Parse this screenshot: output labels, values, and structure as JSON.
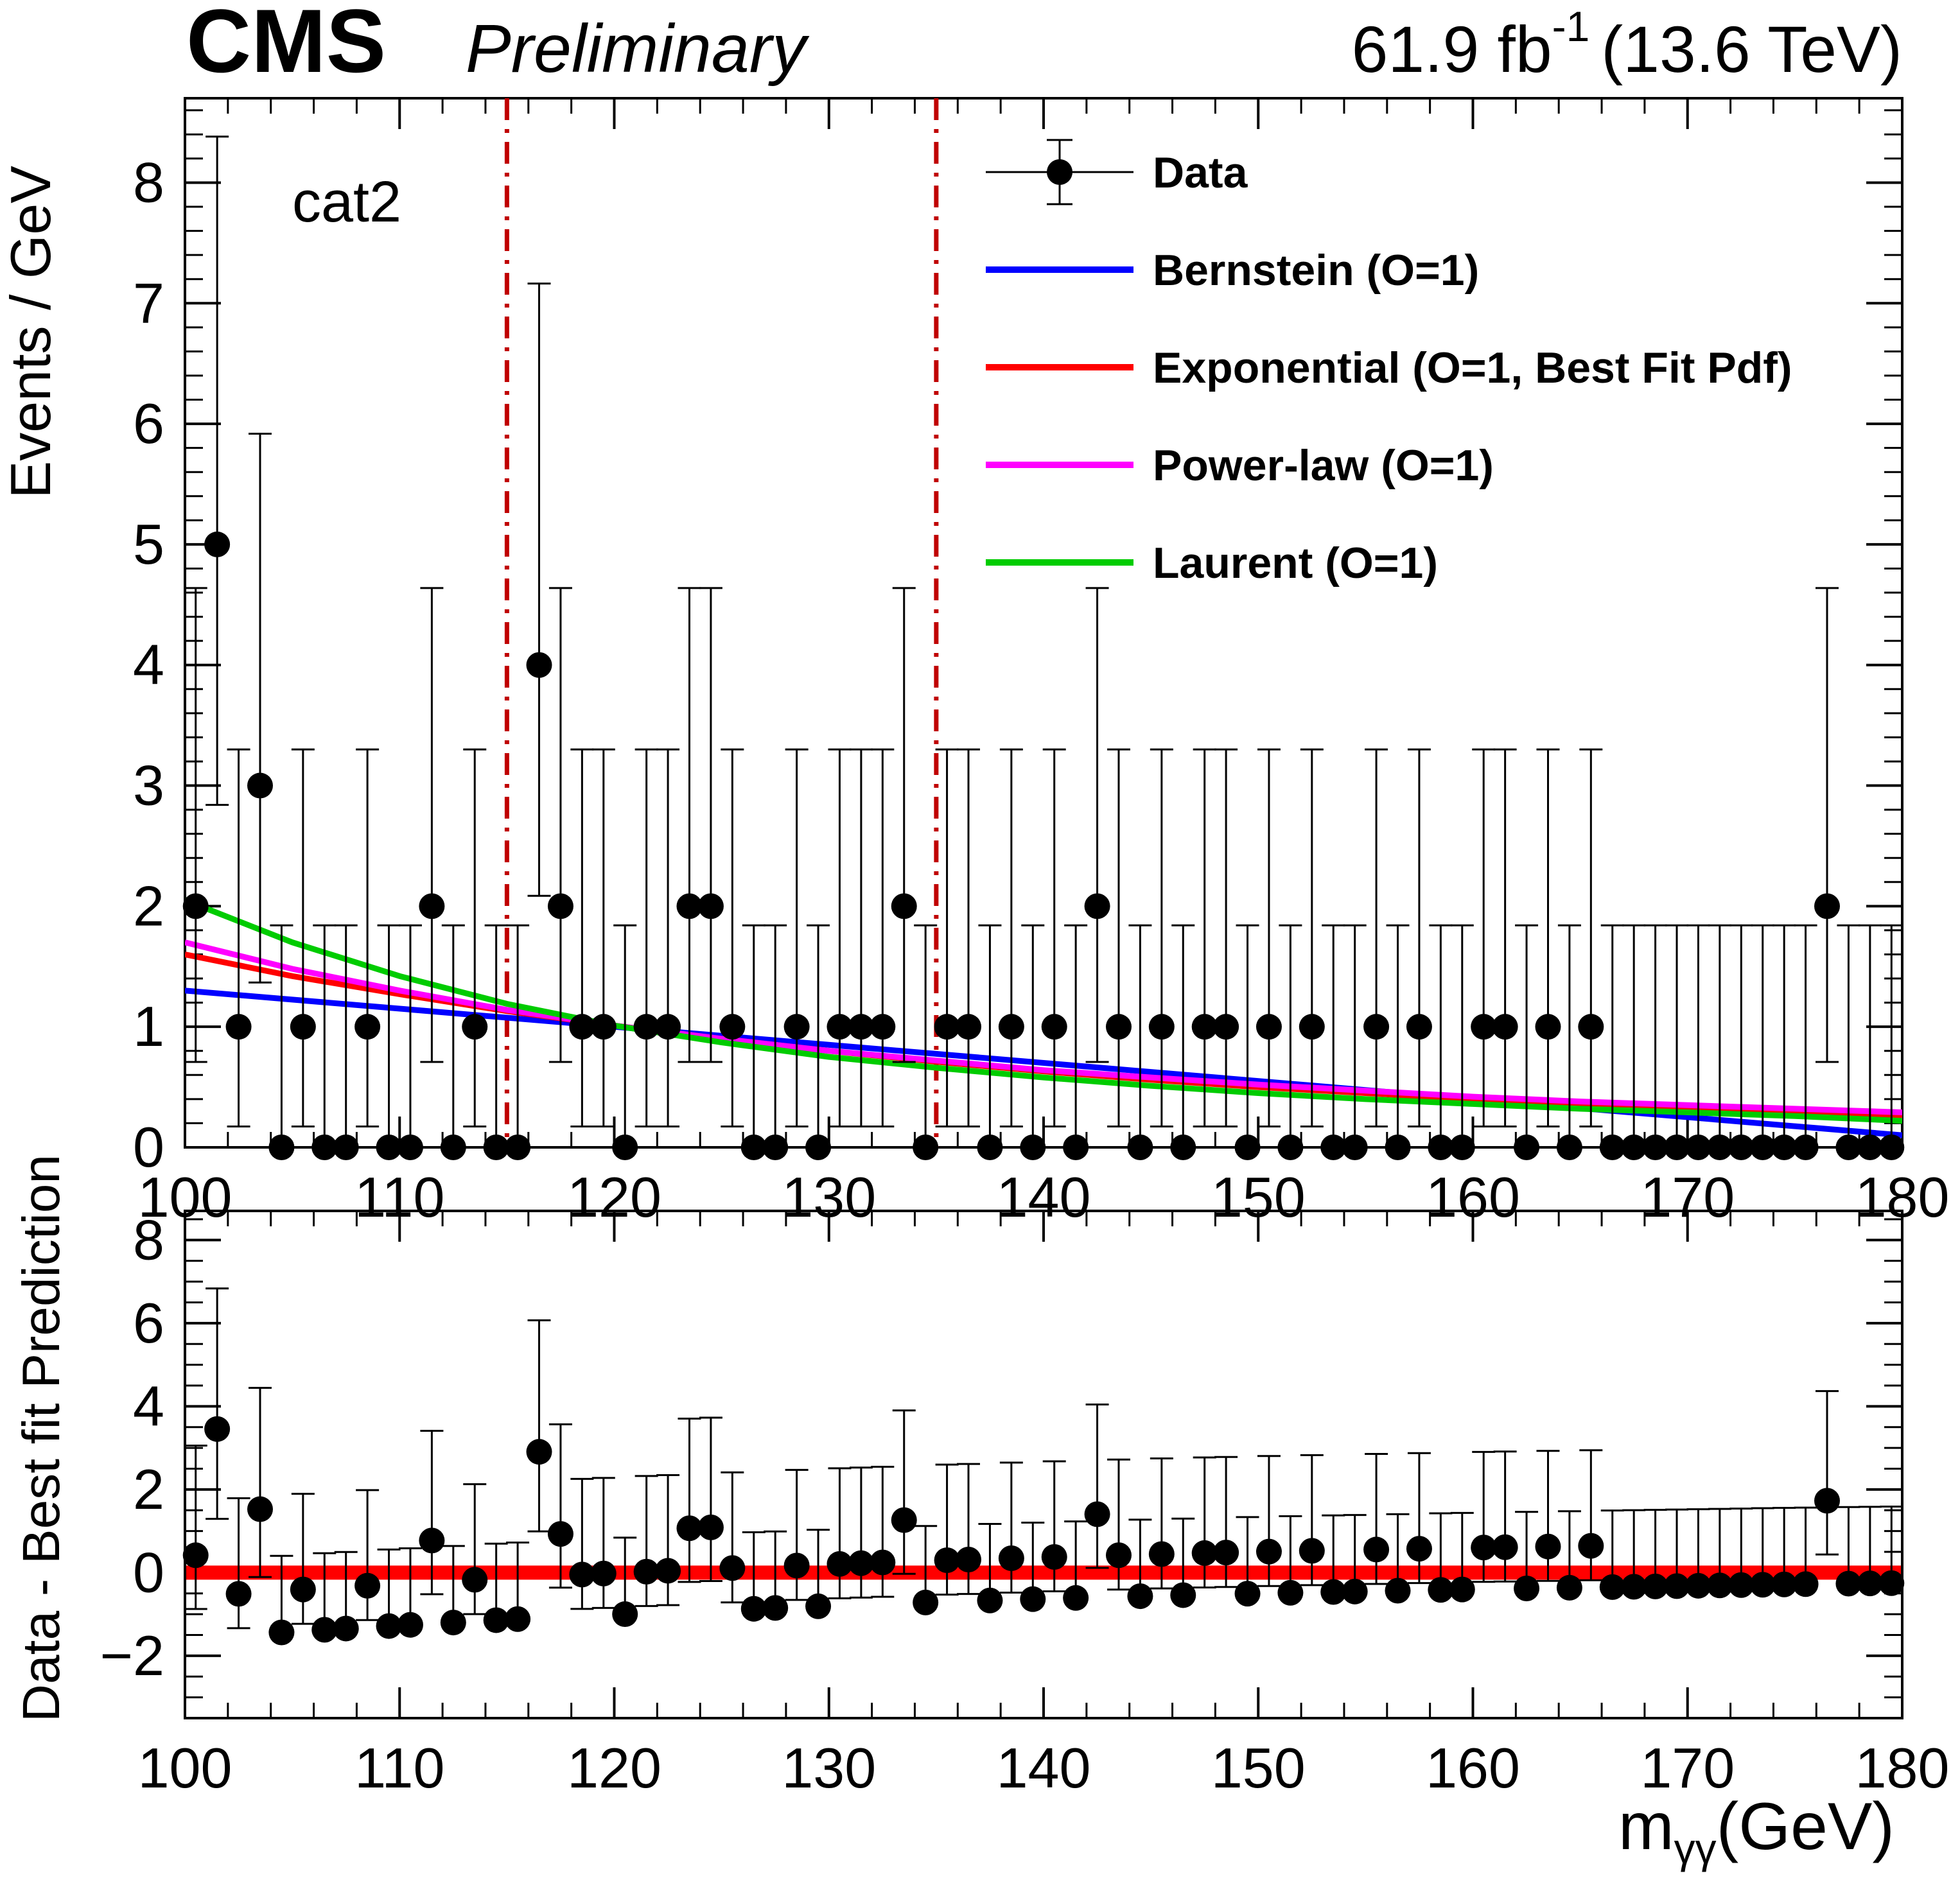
{
  "header": {
    "experiment": "CMS",
    "status": "Preliminary",
    "luminosity": "61.9 fb",
    "lumi_exponent": "-1",
    "energy": "(13.6 TeV)"
  },
  "chart_data": [
    {
      "type": "scatter",
      "panel": "main",
      "category_label": "cat2",
      "ylabel": "Events / GeV",
      "xlim": [
        100,
        180
      ],
      "ylim": [
        0,
        8.7
      ],
      "x_ticks": [
        "100",
        "110",
        "120",
        "130",
        "140",
        "150",
        "160",
        "170",
        "180"
      ],
      "y_ticks": [
        "0",
        "1",
        "2",
        "3",
        "4",
        "5",
        "6",
        "7",
        "8"
      ],
      "legend_position": "top-right",
      "legend": [
        {
          "label": "Data",
          "marker": "point",
          "color": "#000000"
        },
        {
          "label": "Bernstein (O=1)",
          "marker": "line",
          "color": "#0000ff"
        },
        {
          "label": "Exponential (O=1, Best Fit Pdf)",
          "marker": "line",
          "color": "#ff0000"
        },
        {
          "label": "Power-law (O=1)",
          "marker": "line",
          "color": "#ff00ff"
        },
        {
          "label": "Laurent (O=1)",
          "marker": "line",
          "color": "#00cc00"
        }
      ],
      "signal_window": [
        115,
        135
      ],
      "signal_window_color": "#c00000",
      "data": {
        "x": [
          100.5,
          101.5,
          102.5,
          103.5,
          104.5,
          105.5,
          106.5,
          107.5,
          108.5,
          109.5,
          110.5,
          111.5,
          112.5,
          113.5,
          114.5,
          115.5,
          116.5,
          117.5,
          118.5,
          119.5,
          120.5,
          121.5,
          122.5,
          123.5,
          124.5,
          125.5,
          126.5,
          127.5,
          128.5,
          129.5,
          130.5,
          131.5,
          132.5,
          133.5,
          134.5,
          135.5,
          136.5,
          137.5,
          138.5,
          139.5,
          140.5,
          141.5,
          142.5,
          143.5,
          144.5,
          145.5,
          146.5,
          147.5,
          148.5,
          149.5,
          150.5,
          151.5,
          152.5,
          153.5,
          154.5,
          155.5,
          156.5,
          157.5,
          158.5,
          159.5,
          160.5,
          161.5,
          162.5,
          163.5,
          164.5,
          165.5,
          166.5,
          167.5,
          168.5,
          169.5,
          170.5,
          171.5,
          172.5,
          173.5,
          174.5,
          175.5,
          176.5,
          177.5,
          178.5,
          179.5
        ],
        "y": [
          2,
          5,
          1,
          3,
          0,
          1,
          0,
          0,
          1,
          0,
          0,
          2,
          0,
          1,
          0,
          0,
          4,
          2,
          1,
          1,
          0,
          1,
          1,
          2,
          2,
          1,
          0,
          0,
          1,
          0,
          1,
          1,
          1,
          2,
          0,
          1,
          1,
          0,
          1,
          0,
          1,
          0,
          2,
          1,
          0,
          1,
          0,
          1,
          1,
          0,
          1,
          0,
          1,
          0,
          0,
          1,
          0,
          1,
          0,
          0,
          1,
          1,
          0,
          1,
          0,
          1,
          0,
          0,
          0,
          0,
          0,
          0,
          0,
          0,
          0,
          0,
          2,
          0,
          0,
          0
        ]
      },
      "fits": [
        {
          "name": "Bernstein (O=1)",
          "color": "#0000ff",
          "x": [
            100,
            180
          ],
          "y": [
            1.3,
            0.1
          ]
        },
        {
          "name": "Exponential (O=1, Best Fit Pdf)",
          "color": "#ff0000",
          "x": [
            100,
            105,
            110,
            115,
            120,
            125,
            130,
            135,
            140,
            145,
            150,
            155,
            160,
            165,
            170,
            175,
            180
          ],
          "y": [
            1.6,
            1.42,
            1.27,
            1.13,
            1.01,
            0.9,
            0.8,
            0.71,
            0.63,
            0.56,
            0.5,
            0.45,
            0.4,
            0.36,
            0.32,
            0.28,
            0.25
          ]
        },
        {
          "name": "Power-law (O=1)",
          "color": "#ff00ff",
          "x": [
            100,
            105,
            110,
            115,
            120,
            125,
            130,
            135,
            140,
            145,
            150,
            155,
            160,
            165,
            170,
            175,
            180
          ],
          "y": [
            1.7,
            1.48,
            1.3,
            1.14,
            1.01,
            0.9,
            0.8,
            0.72,
            0.64,
            0.58,
            0.52,
            0.47,
            0.42,
            0.38,
            0.35,
            0.32,
            0.29
          ]
        },
        {
          "name": "Laurent (O=1)",
          "color": "#00cc00",
          "x": [
            100,
            105,
            110,
            115,
            120,
            125,
            130,
            135,
            140,
            145,
            150,
            155,
            160,
            165,
            170,
            175,
            180
          ],
          "y": [
            2.05,
            1.7,
            1.42,
            1.19,
            1.01,
            0.87,
            0.75,
            0.66,
            0.58,
            0.51,
            0.45,
            0.4,
            0.36,
            0.32,
            0.29,
            0.26,
            0.22
          ]
        }
      ]
    },
    {
      "type": "scatter",
      "panel": "ratio",
      "ylabel": "Data - Best fit Prediction",
      "xlabel_main": "m",
      "xlabel_sub": "γγ",
      "xlabel_unit": "(GeV)",
      "xlim": [
        100,
        180
      ],
      "ylim": [
        -3.5,
        8.7
      ],
      "x_ticks": [
        "100",
        "110",
        "120",
        "130",
        "140",
        "150",
        "160",
        "170",
        "180"
      ],
      "y_ticks": [
        "−2",
        "0",
        "2",
        "4",
        "6",
        "8"
      ],
      "reference_line": {
        "y": 0,
        "color": "#ff0000"
      }
    }
  ]
}
